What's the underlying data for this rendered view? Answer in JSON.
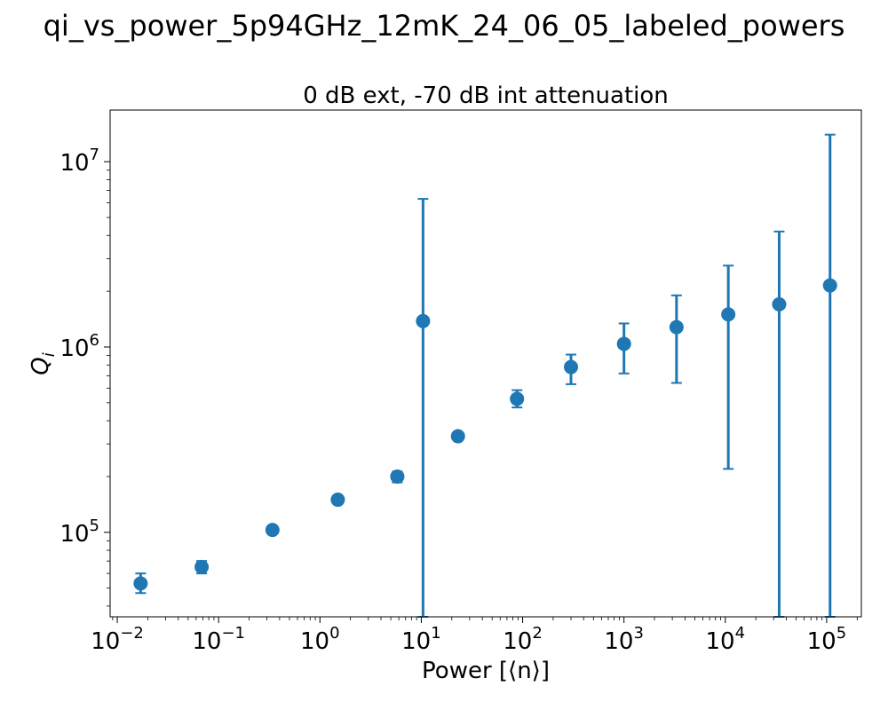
{
  "figure": {
    "title": "qi_vs_power_5p94GHz_12mK_24_06_05_labeled_powers"
  },
  "chart_data": {
    "type": "scatter",
    "title": "0 dB ext, -70 dB int attenuation",
    "xlabel": "Power [⟨n⟩]",
    "ylabel": "Q_i",
    "xscale": "log",
    "yscale": "log",
    "xlim": [
      0.0085,
      220000
    ],
    "ylim": [
      35000,
      19000000
    ],
    "x_ticks": [
      {
        "value": 0.01,
        "base": "10",
        "exp": "−2"
      },
      {
        "value": 0.1,
        "base": "10",
        "exp": "−1"
      },
      {
        "value": 1,
        "base": "10",
        "exp": "0"
      },
      {
        "value": 10,
        "base": "10",
        "exp": "1"
      },
      {
        "value": 100,
        "base": "10",
        "exp": "2"
      },
      {
        "value": 1000,
        "base": "10",
        "exp": "3"
      },
      {
        "value": 10000,
        "base": "10",
        "exp": "4"
      },
      {
        "value": 100000,
        "base": "10",
        "exp": "5"
      }
    ],
    "y_ticks": [
      {
        "value": 100000,
        "base": "10",
        "exp": "5"
      },
      {
        "value": 1000000,
        "base": "10",
        "exp": "6"
      },
      {
        "value": 10000000,
        "base": "10",
        "exp": "7"
      }
    ],
    "grid": false,
    "color": "#1f77b4",
    "series": [
      {
        "points": [
          {
            "x": 0.017,
            "y": 53000,
            "lo": 47000,
            "hi": 60000
          },
          {
            "x": 0.068,
            "y": 65000,
            "lo": 60000,
            "hi": 70000
          },
          {
            "x": 0.34,
            "y": 103000,
            "lo": 100000,
            "hi": 107000
          },
          {
            "x": 1.5,
            "y": 150000,
            "lo": 146000,
            "hi": 155000
          },
          {
            "x": 5.8,
            "y": 200000,
            "lo": 186000,
            "hi": 213000
          },
          {
            "x": 10.4,
            "y": 1380000,
            "lo": 35000,
            "hi": 6300000
          },
          {
            "x": 23,
            "y": 330000,
            "lo": 318000,
            "hi": 342000
          },
          {
            "x": 88,
            "y": 525000,
            "lo": 472000,
            "hi": 585000
          },
          {
            "x": 300,
            "y": 780000,
            "lo": 630000,
            "hi": 910000
          },
          {
            "x": 1000,
            "y": 1040000,
            "lo": 720000,
            "hi": 1340000
          },
          {
            "x": 3300,
            "y": 1280000,
            "lo": 640000,
            "hi": 1900000
          },
          {
            "x": 10700,
            "y": 1500000,
            "lo": 220000,
            "hi": 2750000
          },
          {
            "x": 34000,
            "y": 1700000,
            "lo": 35000,
            "hi": 4200000
          },
          {
            "x": 108000,
            "y": 2150000,
            "lo": 35000,
            "hi": 14000000
          }
        ]
      }
    ]
  }
}
